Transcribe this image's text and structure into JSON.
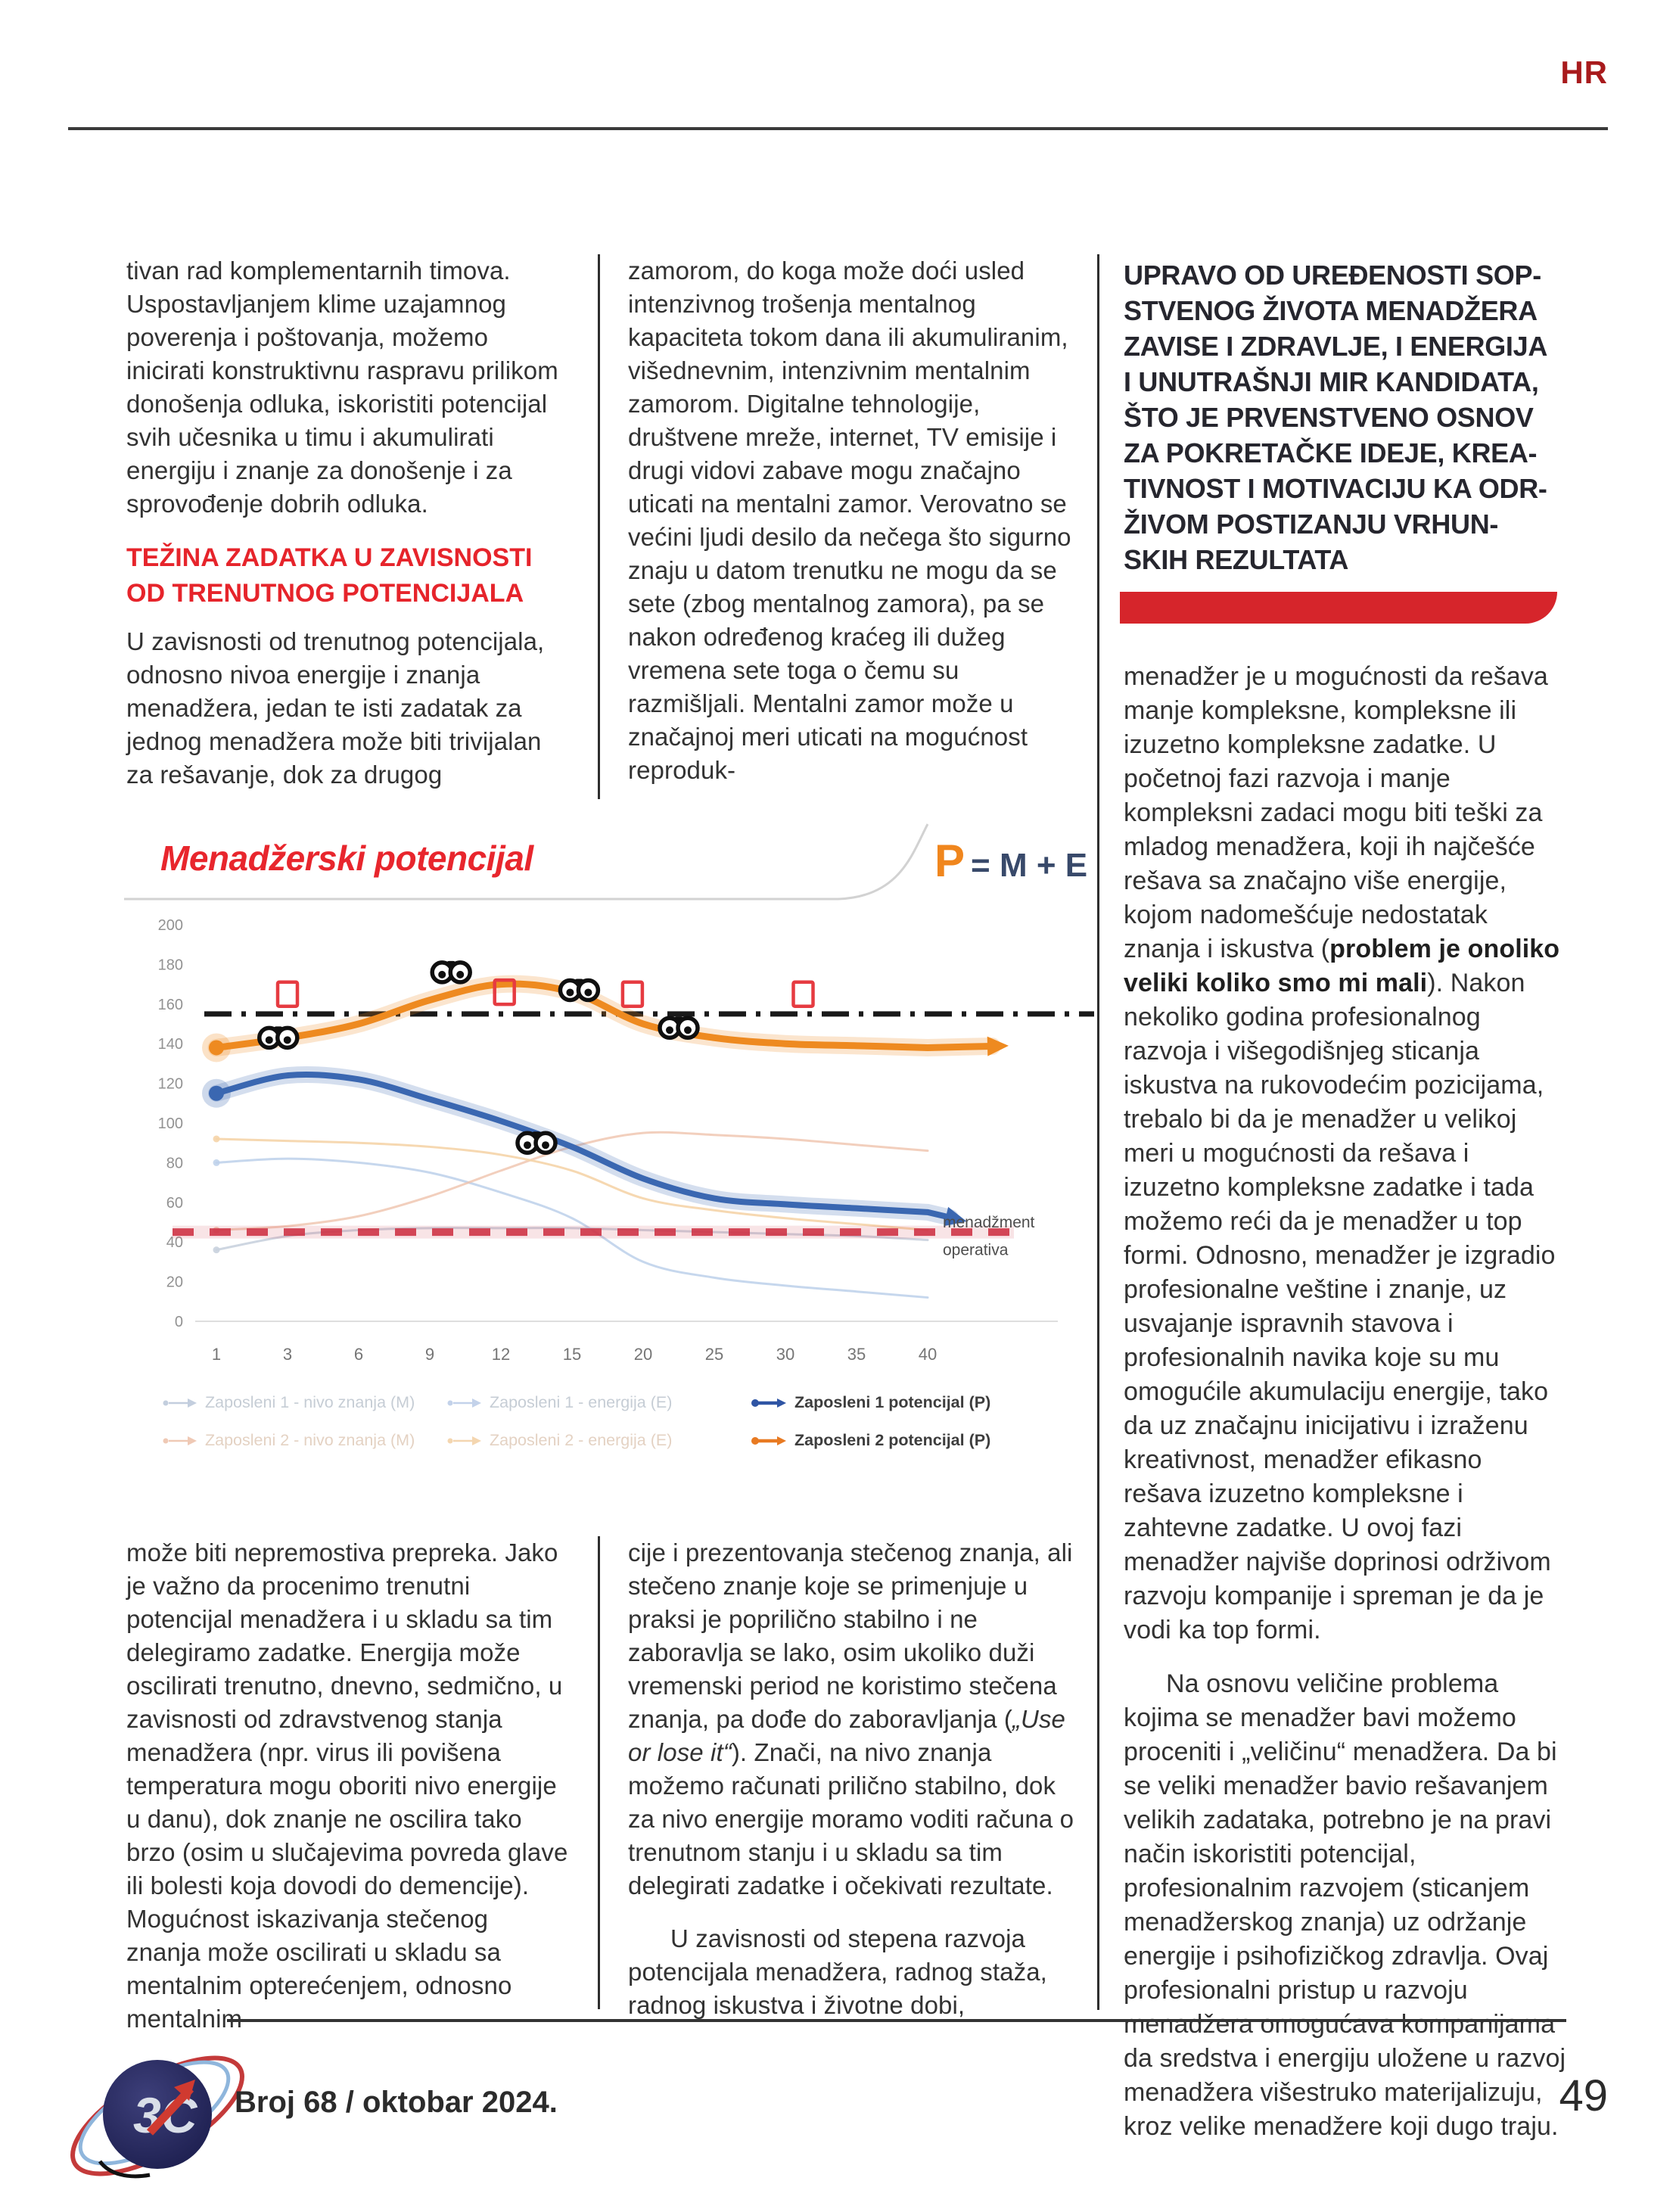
{
  "page": {
    "hr_tag": "HR",
    "footer_issue": "Broj 68 / oktobar 2024.",
    "page_number": "49",
    "logo_text": "3C",
    "accent_red": "#e6242b",
    "dark_red": "#a81a1c"
  },
  "columns": {
    "col1_top": {
      "p1": "tivan rad komplementarnih timova. Uspostavljanjem klime uzajamnog poverenja i poštovanja, možemo inicirati konstruktivnu raspravu prilikom donošenja odluka, iskoristiti potencijal svih učesnika u timu i akumulirati energiju i znanje za donošenje i za sprovođenje dobrih odluka.",
      "heading_lines": [
        "TEŽINA ZADATKA U ZAVISNOSTI",
        "OD TRENUTNOG POTENCIJALA"
      ],
      "p2": "U zavisnosti od trenutnog potencijala, odnosno nivoa energije i znanja menadžera, jedan te isti zadatak za jednog menadžera može biti trivijalan za rešavanje, dok za drugog"
    },
    "col2_top": {
      "p1": "zamorom, do koga može doći usled intenzivnog trošenja mentalnog kapaciteta tokom dana ili akumuliranim, višednevnim, intenzivnim mentalnim zamorom. Digitalne tehnologije, društvene mreže, internet, TV emisije i drugi vidovi zabave mogu značajno uticati na mentalni zamor. Verovatno se većini ljudi desilo da nečega što sigurno znaju u datom trenutku ne mogu da se sete (zbog mentalnog zamora), pa se nakon određenog kraćeg ili dužeg vremena sete toga o čemu su razmišljali. Mentalni zamor može u značajnoj meri uticati na mogućnost reproduk-"
    },
    "col3": {
      "heading_lines": [
        "UPRAVO OD UREĐENOSTI SOP-",
        "STVENOG ŽIVOTA MENADŽERA",
        "ZAVISE I ZDRAVLJE, I ENERGIJA",
        "I UNUTRAŠNJI MIR KANDIDATA,",
        "ŠTO JE PRVENSTVENO OSNOV",
        "ZA POKRETAČKE IDEJE, KREA-",
        "TIVNOST I MOTIVACIJU KA ODR-",
        "ŽIVOM POSTIZANJU VRHUN-",
        "SKIH REZULTATA"
      ],
      "p1_before": "menadžer je u mogućnosti da rešava manje kompleksne, kompleksne ili izuzetno kompleksne zadatke. U početnoj fazi razvoja i manje kompleksni zadaci mogu biti teški za mladog menadžera, koji ih najčešće rešava sa značajno više energije, kojom nadomešćuje nedostatak znanja i iskustva (",
      "p1_bold": "problem je onoliko veliki koliko smo mi mali",
      "p1_after": "). Nakon nekoliko godina profesionalnog razvoja i višegodišnjeg sticanja iskustva na rukovodećim pozicijama, trebalo bi da je menadžer u velikoj meri u mogućnosti da rešava i izuzetno kompleksne zadatke i tada možemo reći da je menadžer u top formi. Odnosno, menadžer je izgradio profesionalne veštine i znanje, uz usvajanje ispravnih stavova i profesionalnih navika koje su mu omogućile akumulaciju energije, tako da uz značajnu inicijativu i izraženu kreativnost, menadžer efikasno rešava izuzetno kompleksne i zahtevne zadatke. U ovoj fazi menadžer najviše doprinosi održivom razvoju kompanije i spreman je da je vodi ka top formi.",
      "p2": "Na osnovu veličine problema kojima se menadžer bavi možemo proceniti i „veličinu“ menadžera. Da bi se veliki menadžer bavio rešavanjem velikih zadataka, potrebno je na pravi način iskoristiti potencijal, profesionalnim razvojem (sticanjem menadžerskog znanja) uz održanje energije i psihofizičkog zdravlja. Ovaj profesionalni pristup u razvoju menadžera omogućava kompanijama da sredstva i energiju uložene u razvoj menadžera višestruko materijalizuju, kroz velike menadžere koji dugo traju."
    },
    "col1_bottom": {
      "p1": "može biti nepremostiva prepreka. Jako je važno da procenimo trenutni potencijal menadžera i u skladu sa tim delegiramo zadatke. Energija može oscilirati trenutno, dnevno, sedmično, u zavisnosti od zdravstvenog stanja menadžera (npr. virus ili povišena temperatura mogu oboriti nivo energije u danu), dok znanje ne oscilira tako brzo (osim u slučajevima povreda glave ili bolesti koja dovodi do demencije). Mogućnost iskazivanja stečenog znanja može oscilirati u skladu sa mentalnim opterećenjem, odnosno mentalnim"
    },
    "col2_bottom": {
      "p1_before": "cije i prezentovanja stečenog znanja, ali stečeno znanje koje se primenjuje u praksi je poprilično stabilno i ne zaboravlja se lako, osim ukoliko duži vremenski period ne koristimo stečena znanja, pa dođe do zaboravljanja (",
      "p1_italic": "„Use or lose it“",
      "p1_after": "). Znači, na nivo znanja možemo računati prilično stabilno, dok za nivo energije moramo voditi računa o trenutnom stanju i u skladu sa tim delegirati zadatke i očekivati rezultate.",
      "p2": "U zavisnosti od stepena razvoja potencijala menadžera, radnog staža, radnog iskustva i životne dobi,"
    }
  },
  "chart_data": {
    "type": "line",
    "title": "Menadžerski potencijal",
    "formula": {
      "p": "P",
      "rest": "= M + E"
    },
    "xlabel": "",
    "ylabel": "",
    "x_categories": [
      1,
      3,
      6,
      9,
      12,
      15,
      20,
      25,
      30,
      35,
      40
    ],
    "y_ticks": [
      0,
      20,
      40,
      60,
      80,
      100,
      120,
      140,
      160,
      180,
      200
    ],
    "ylim": [
      0,
      200
    ],
    "grid": false,
    "series": [
      {
        "name": "Zaposleni 1 - nivo znanja (M)",
        "color": "#c9d2de",
        "width": 3,
        "opacity": 0.9,
        "values": [
          36,
          43,
          46,
          47,
          47,
          47,
          46,
          45,
          44,
          43,
          41
        ]
      },
      {
        "name": "Zaposleni 1 - energija (E)",
        "color": "#bcd0ea",
        "width": 3,
        "opacity": 0.85,
        "values": [
          80,
          82,
          80,
          75,
          65,
          52,
          30,
          22,
          18,
          15,
          12
        ]
      },
      {
        "name": "Zaposleni 2 - nivo znanja (M)",
        "color": "#efc3ad",
        "width": 3,
        "opacity": 0.8,
        "values": [
          46,
          48,
          53,
          63,
          76,
          88,
          95,
          94,
          92,
          89,
          86
        ]
      },
      {
        "name": "Zaposleni 2 - energija (E)",
        "color": "#f5d4a9",
        "width": 3,
        "opacity": 0.9,
        "values": [
          92,
          91,
          90,
          88,
          84,
          76,
          62,
          56,
          52,
          49,
          46
        ]
      },
      {
        "name": "Zaposleni 1 potencijal (P)",
        "color": "#3a67b1",
        "width": 8,
        "opacity": 1,
        "glow": true,
        "start_dot": true,
        "arrow": true,
        "arrow_ext": [
          30,
          7
        ],
        "values": [
          115,
          124,
          122,
          112,
          101,
          88,
          72,
          62,
          59,
          57,
          55
        ]
      },
      {
        "name": "Zaposleni 2 potencijal (P)",
        "color": "#ee8a20",
        "width": 9,
        "opacity": 1,
        "glow": true,
        "start_dot": true,
        "arrow": true,
        "arrow_ext": [
          85,
          -2
        ],
        "values": [
          138,
          143,
          150,
          162,
          170,
          166,
          150,
          143,
          140,
          139,
          138
        ]
      }
    ],
    "hlines": [
      {
        "value": 155,
        "style": "dashdot",
        "color": "#1a1a1a",
        "width": 7
      },
      {
        "value": 45,
        "style": "dashed",
        "color": "#cf3547",
        "width": 10
      }
    ],
    "right_labels": [
      {
        "text": "menadžment",
        "value": 50
      },
      {
        "text": "operativa",
        "value": 36
      }
    ],
    "squares": [
      {
        "i": 1.0,
        "v": 165
      },
      {
        "i": 4.05,
        "v": 166
      },
      {
        "i": 5.85,
        "v": 165
      },
      {
        "i": 8.25,
        "v": 165
      }
    ],
    "binoculars": [
      {
        "i": 0.87,
        "v": 143
      },
      {
        "i": 3.3,
        "v": 176
      },
      {
        "i": 5.1,
        "v": 167
      },
      {
        "i": 6.5,
        "v": 148
      },
      {
        "i": 4.5,
        "v": 90
      }
    ],
    "legend_items": [
      {
        "label": "Zaposleni 1 - nivo znanja (M)",
        "color": "#c3cede",
        "text_color": "#c6cdd5",
        "strong": false,
        "row": 0,
        "col": 0
      },
      {
        "label": "Zaposleni 1 - energija (E)",
        "color": "#c3d2ea",
        "text_color": "#c6cdd5",
        "strong": false,
        "row": 0,
        "col": 1
      },
      {
        "label": "Zaposleni 1 potencijal (P)",
        "color": "#2f55a4",
        "text_color": "#3d3d3d",
        "strong": true,
        "row": 0,
        "col": 2
      },
      {
        "label": "Zaposleni 2 - nivo znanja (M)",
        "color": "#efc9b5",
        "text_color": "#e4d2c3",
        "strong": false,
        "row": 1,
        "col": 0
      },
      {
        "label": "Zaposleni 2 - energija (E)",
        "color": "#f4d6b0",
        "text_color": "#e4d2c3",
        "strong": false,
        "row": 1,
        "col": 1
      },
      {
        "label": "Zaposleni 2 potencijal (P)",
        "color": "#e87a22",
        "text_color": "#3d3d3d",
        "strong": true,
        "row": 1,
        "col": 2
      }
    ]
  }
}
